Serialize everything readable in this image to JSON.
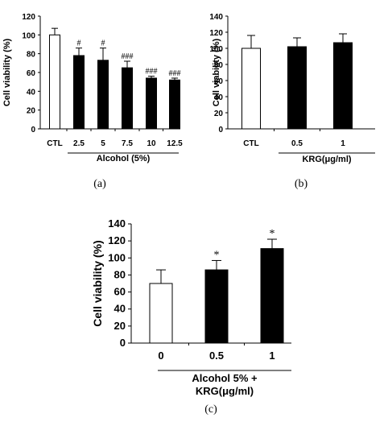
{
  "chart_data": [
    {
      "panel": "(a)",
      "type": "bar",
      "categories": [
        "CTL",
        "2.5",
        "5",
        "7.5",
        "10",
        "12.5"
      ],
      "values": [
        100,
        78,
        73,
        65,
        54,
        52
      ],
      "errors": [
        7,
        8,
        13,
        7,
        2,
        2
      ],
      "fills": [
        "#ffffff",
        "#000000",
        "#000000",
        "#000000",
        "#000000",
        "#000000"
      ],
      "annotations": [
        "",
        "#",
        "#",
        "###",
        "###",
        "###"
      ],
      "ylabel": "Cell viability (%)",
      "group_label": "Alcohol (5%)",
      "ylim": [
        0,
        120
      ],
      "yticks": [
        "0",
        "20",
        "40",
        "60",
        "80",
        "100",
        "120"
      ]
    },
    {
      "panel": "(b)",
      "type": "bar",
      "categories": [
        "CTL",
        "0.5",
        "1"
      ],
      "values": [
        100,
        102,
        107
      ],
      "errors": [
        16,
        11,
        11
      ],
      "fills": [
        "#ffffff",
        "#000000",
        "#000000"
      ],
      "annotations": [
        "",
        "",
        ""
      ],
      "ylabel": "Cell viability (%)",
      "group_label": "KRG(μg/ml)",
      "ylim": [
        0,
        140
      ],
      "yticks": [
        "0",
        "20",
        "40",
        "60",
        "80",
        "100",
        "120",
        "140"
      ]
    },
    {
      "panel": "(c)",
      "type": "bar",
      "categories": [
        "0",
        "0.5",
        "1"
      ],
      "values": [
        70,
        86,
        111
      ],
      "errors": [
        16,
        11,
        11
      ],
      "fills": [
        "#ffffff",
        "#000000",
        "#000000"
      ],
      "annotations": [
        "",
        "*",
        "*"
      ],
      "ylabel": "Cell viability (%)",
      "group_label": "Alcohol 5% +",
      "group_label_2": "KRG(μg/ml)",
      "ylim": [
        0,
        140
      ],
      "yticks": [
        "0",
        "20",
        "40",
        "60",
        "80",
        "100",
        "120",
        "140"
      ]
    }
  ]
}
